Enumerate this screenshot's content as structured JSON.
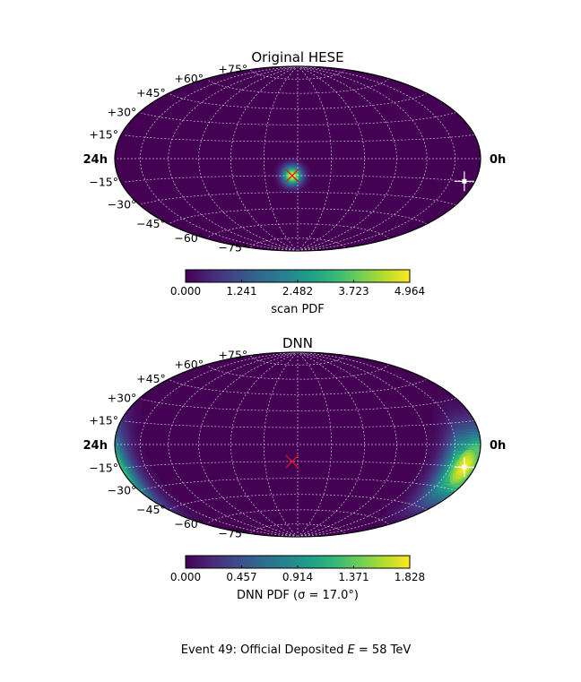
{
  "colors": {
    "cmap_stops": [
      "#440154",
      "#482878",
      "#3e4a89",
      "#31688e",
      "#26828e",
      "#1f9e89",
      "#35b779",
      "#6ece58",
      "#b5de2b",
      "#fde725"
    ],
    "grid": "#ffffff",
    "true_marker": "#d7191c",
    "reco_marker": "#ffffff"
  },
  "chart_data": [
    {
      "type": "heatmap",
      "projection": "hammer",
      "title": "Original HESE",
      "dec_labels": [
        "+75°",
        "+60°",
        "+45°",
        "+30°",
        "+15°",
        "−15°",
        "−30°",
        "−45°",
        "−60°",
        "−75°"
      ],
      "ra_labels": {
        "left": "24h",
        "right": "0h"
      },
      "grid": true,
      "colorbar": {
        "label": "scan PDF",
        "min": 0,
        "max": 4.964,
        "ticks": [
          "0.000",
          "1.241",
          "2.482",
          "3.723",
          "4.964"
        ]
      },
      "hotspots": [
        {
          "ra_deg": 185,
          "dec_deg": -15,
          "sigma_deg": 6,
          "level": 1.0
        }
      ],
      "true_direction": {
        "ra_deg": 185,
        "dec_deg": -15
      },
      "reco_direction": {
        "ra_deg": 13,
        "dec_deg": -15
      }
    },
    {
      "type": "heatmap",
      "projection": "hammer",
      "title": "DNN",
      "dec_labels": [
        "+75°",
        "+60°",
        "+45°",
        "+30°",
        "+15°",
        "−15°",
        "−30°",
        "−45°",
        "−60°",
        "−75°"
      ],
      "ra_labels": {
        "left": "24h",
        "right": "0h"
      },
      "grid": true,
      "colorbar": {
        "label": "DNN PDF (σ = 17.0°)",
        "min": 0,
        "max": 1.828,
        "ticks": [
          "0.000",
          "0.457",
          "0.914",
          "1.371",
          "1.828"
        ]
      },
      "hotspots": [
        {
          "ra_deg": 13,
          "dec_deg": -15,
          "sigma_deg": 17,
          "level": 1.0
        }
      ],
      "true_direction": {
        "ra_deg": 185,
        "dec_deg": -15
      },
      "reco_direction": {
        "ra_deg": 13,
        "dec_deg": -15
      }
    }
  ],
  "footer": {
    "prefix": "Event 49:  Official Deposited ",
    "var": "E",
    "eq": " = ",
    "value": "58",
    "unit": " TeV"
  }
}
